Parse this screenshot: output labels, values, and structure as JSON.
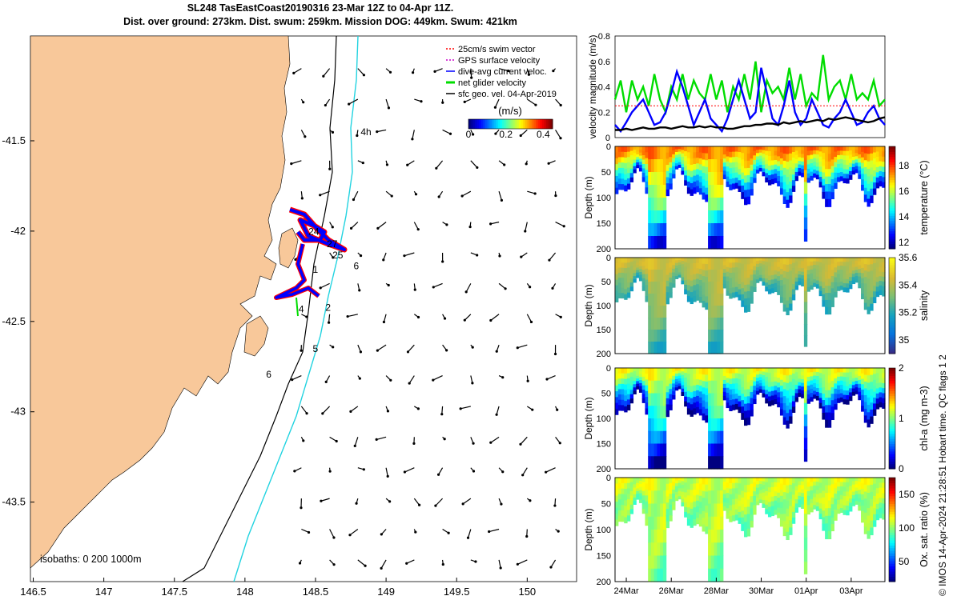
{
  "title": {
    "line1": "SL248 TasEastCoast20190316 23-Mar 12Z to 04-Apr 11Z.",
    "line2": "Dist. over ground: 273km. Dist. swum: 259km. Mission DOG: 449km. Swum: 421km"
  },
  "map": {
    "x_ticks": [
      "146.5",
      "147",
      "147.5",
      "148",
      "148.5",
      "149",
      "149.5",
      "150"
    ],
    "x_tick_values": [
      146.5,
      147,
      147.5,
      148,
      148.5,
      149,
      149.5,
      150
    ],
    "y_ticks": [
      "-41.5",
      "-42",
      "-42.5",
      "-43",
      "-43.5"
    ],
    "y_tick_values": [
      -41.5,
      -42,
      -42.5,
      -43,
      -43.5
    ],
    "xlim": [
      146.48,
      150.35
    ],
    "ylim": [
      -43.94,
      -40.92
    ],
    "legend": {
      "items": [
        {
          "label": "25cm/s swim vector",
          "color": "#ff0000"
        },
        {
          "label": "GPS surface velocity",
          "color": "#cc00cc"
        },
        {
          "label": "dive-avg current veloc.",
          "color": "#0000ff"
        },
        {
          "label": "net glider velocity",
          "color": "#00dd00"
        },
        {
          "label": "sfc geo. vel. 04-Apr-2019",
          "color": "#000000"
        }
      ]
    },
    "colorbar": {
      "label": "(m/s)",
      "ticks": [
        "0",
        "0.2",
        "0.4"
      ],
      "tick_values": [
        0,
        0.2,
        0.4
      ],
      "range": [
        0,
        0.45
      ]
    },
    "isobaths_label": "isobaths: 0   200  1000m",
    "day_labels": [
      {
        "text": "4h",
        "lon": 148.82,
        "lat": -41.47
      },
      {
        "text": "24",
        "lon": 148.45,
        "lat": -42.02
      },
      {
        "text": "27",
        "lon": 148.58,
        "lat": -42.09
      },
      {
        "text": "25",
        "lon": 148.62,
        "lat": -42.15
      },
      {
        "text": "6",
        "lon": 148.77,
        "lat": -42.21
      },
      {
        "text": "1",
        "lon": 148.48,
        "lat": -42.23
      },
      {
        "text": "2",
        "lon": 148.57,
        "lat": -42.44
      },
      {
        "text": "4",
        "lon": 148.38,
        "lat": -42.45
      },
      {
        "text": "5",
        "lon": 148.48,
        "lat": -42.67
      },
      {
        "text": "6",
        "lon": 148.15,
        "lat": -42.81
      }
    ]
  },
  "chart_data": [
    {
      "type": "line",
      "ylabel": "velocity magnitude (m/s)",
      "ylim": [
        0,
        0.8
      ],
      "yticks": [
        "0",
        "0.2",
        "0.4",
        "0.6",
        "0.8"
      ],
      "ytick_values": [
        0,
        0.2,
        0.4,
        0.6,
        0.8
      ],
      "x": [
        0,
        1,
        2,
        3,
        4,
        5,
        6,
        7,
        8,
        9,
        10,
        11,
        12,
        13,
        14,
        15,
        16,
        17,
        18,
        19,
        20,
        21,
        22,
        23,
        24,
        25,
        26,
        27,
        28,
        29,
        30,
        31,
        32,
        33,
        34,
        35,
        36,
        37,
        38,
        39,
        40,
        41,
        42,
        43,
        44,
        45,
        46,
        47,
        48
      ],
      "series": [
        {
          "name": "net glider velocity",
          "color": "#00dd00",
          "values": [
            0.3,
            0.45,
            0.2,
            0.45,
            0.3,
            0.4,
            0.25,
            0.5,
            0.3,
            0.2,
            0.4,
            0.3,
            0.5,
            0.3,
            0.45,
            0.35,
            0.3,
            0.5,
            0.3,
            0.45,
            0.2,
            0.4,
            0.3,
            0.5,
            0.3,
            0.6,
            0.2,
            0.45,
            0.35,
            0.4,
            0.3,
            0.55,
            0.3,
            0.5,
            0.25,
            0.35,
            0.3,
            0.65,
            0.3,
            0.4,
            0.45,
            0.3,
            0.5,
            0.3,
            0.35,
            0.3,
            0.45,
            0.25,
            0.3
          ]
        },
        {
          "name": "dive-avg current veloc.",
          "color": "#0000ff",
          "values": [
            0.1,
            0.05,
            0.12,
            0.2,
            0.25,
            0.3,
            0.2,
            0.1,
            0.12,
            0.2,
            0.35,
            0.52,
            0.4,
            0.25,
            0.1,
            0.2,
            0.3,
            0.15,
            0.1,
            0.05,
            0.15,
            0.3,
            0.45,
            0.3,
            0.15,
            0.2,
            0.55,
            0.35,
            0.15,
            0.1,
            0.25,
            0.45,
            0.2,
            0.1,
            0.15,
            0.3,
            0.2,
            0.1,
            0.08,
            0.15,
            0.2,
            0.3,
            0.2,
            0.1,
            0.12,
            0.2,
            0.25,
            0.15,
            0.1
          ]
        },
        {
          "name": "sfc geo. vel.",
          "color": "#000000",
          "values": [
            0.06,
            0.06,
            0.07,
            0.06,
            0.07,
            0.08,
            0.07,
            0.07,
            0.08,
            0.08,
            0.07,
            0.08,
            0.09,
            0.08,
            0.08,
            0.09,
            0.08,
            0.09,
            0.08,
            0.08,
            0.07,
            0.07,
            0.08,
            0.09,
            0.09,
            0.1,
            0.1,
            0.11,
            0.11,
            0.1,
            0.12,
            0.11,
            0.12,
            0.13,
            0.12,
            0.13,
            0.14,
            0.13,
            0.15,
            0.14,
            0.15,
            0.16,
            0.15,
            0.14,
            0.13,
            0.12,
            0.13,
            0.15,
            0.16
          ]
        },
        {
          "name": "25cm/s swim vector",
          "color": "#ff0000",
          "values": [
            0.25,
            0.25,
            0.25,
            0.25,
            0.25,
            0.25,
            0.25,
            0.25,
            0.25,
            0.25,
            0.25,
            0.25,
            0.25,
            0.25,
            0.25,
            0.25,
            0.25,
            0.25,
            0.25,
            0.25,
            0.25,
            0.25,
            0.25,
            0.25,
            0.25,
            0.25,
            0.25,
            0.25,
            0.25,
            0.25,
            0.25,
            0.25,
            0.25,
            0.25,
            0.25,
            0.25,
            0.25,
            0.25,
            0.25,
            0.25,
            0.25,
            0.25,
            0.25,
            0.25,
            0.25,
            0.25,
            0.25,
            0.25,
            0.25
          ]
        }
      ]
    },
    {
      "type": "heatmap",
      "variable": "temperature",
      "colorbar_label": "temperature (°C)",
      "clim": [
        11.5,
        19.5
      ],
      "cticks": [
        "12",
        "14",
        "16",
        "18"
      ],
      "ctick_values": [
        12,
        14,
        16,
        18
      ],
      "surface_value": 17.5,
      "deep_value": 12.5,
      "ylabel": "Depth (m)",
      "ylim": [
        0,
        200
      ],
      "yticks": [
        "0",
        "50",
        "100",
        "150",
        "200"
      ],
      "ytick_values": [
        0,
        50,
        100,
        150,
        200
      ]
    },
    {
      "type": "heatmap",
      "variable": "salinity",
      "colorbar_label": "salinity",
      "clim": [
        34.9,
        35.6
      ],
      "cticks": [
        "35",
        "35.2",
        "35.4",
        "35.6"
      ],
      "ctick_values": [
        35,
        35.2,
        35.4,
        35.6
      ],
      "surface_value": 35.45,
      "deep_value": 35.2,
      "ylabel": "Depth (m)",
      "ylim": [
        0,
        200
      ],
      "yticks": [
        "0",
        "50",
        "100",
        "150",
        "200"
      ],
      "ytick_values": [
        0,
        50,
        100,
        150,
        200
      ]
    },
    {
      "type": "heatmap",
      "variable": "chl-a",
      "colorbar_label": "chl-a (mg m-3)",
      "clim": [
        0,
        2
      ],
      "cticks": [
        "0",
        "1",
        "2"
      ],
      "ctick_values": [
        0,
        1,
        2
      ],
      "surface_value": 1.2,
      "deep_value": 0.05,
      "ylabel": "Depth (m)",
      "ylim": [
        0,
        200
      ],
      "yticks": [
        "0",
        "50",
        "100",
        "150",
        "200"
      ],
      "ytick_values": [
        0,
        50,
        100,
        150,
        200
      ]
    },
    {
      "type": "heatmap",
      "variable": "oxygen",
      "colorbar_label": "Ox. sat. ratio (%)",
      "clim": [
        20,
        175
      ],
      "cticks": [
        "50",
        "100",
        "150"
      ],
      "ctick_values": [
        50,
        100,
        150
      ],
      "surface_value": 110,
      "deep_value": 95,
      "ylabel": "Depth (m)",
      "ylim": [
        0,
        200
      ],
      "yticks": [
        "0",
        "50",
        "100",
        "150",
        "200"
      ],
      "ytick_values": [
        0,
        50,
        100,
        150,
        200
      ]
    }
  ],
  "time_axis": {
    "labels": [
      "24Mar",
      "26Mar",
      "28Mar",
      "30Mar",
      "01Apr",
      "03Apr"
    ],
    "day_index": [
      1,
      3,
      5,
      7,
      9,
      11
    ],
    "range_days": [
      0.5,
      12.5
    ]
  },
  "side_text": {
    "qc_flags": "Hobart time. QC flags 1  2",
    "copyright": "© IMOS 14-Apr-2024 21:28:51"
  },
  "colors": {
    "land": "#f8c89a",
    "isobath_200": "#000000",
    "isobath_1000": "#22d3e0",
    "track": "#0000ff",
    "track_edge": "#ff0000"
  }
}
